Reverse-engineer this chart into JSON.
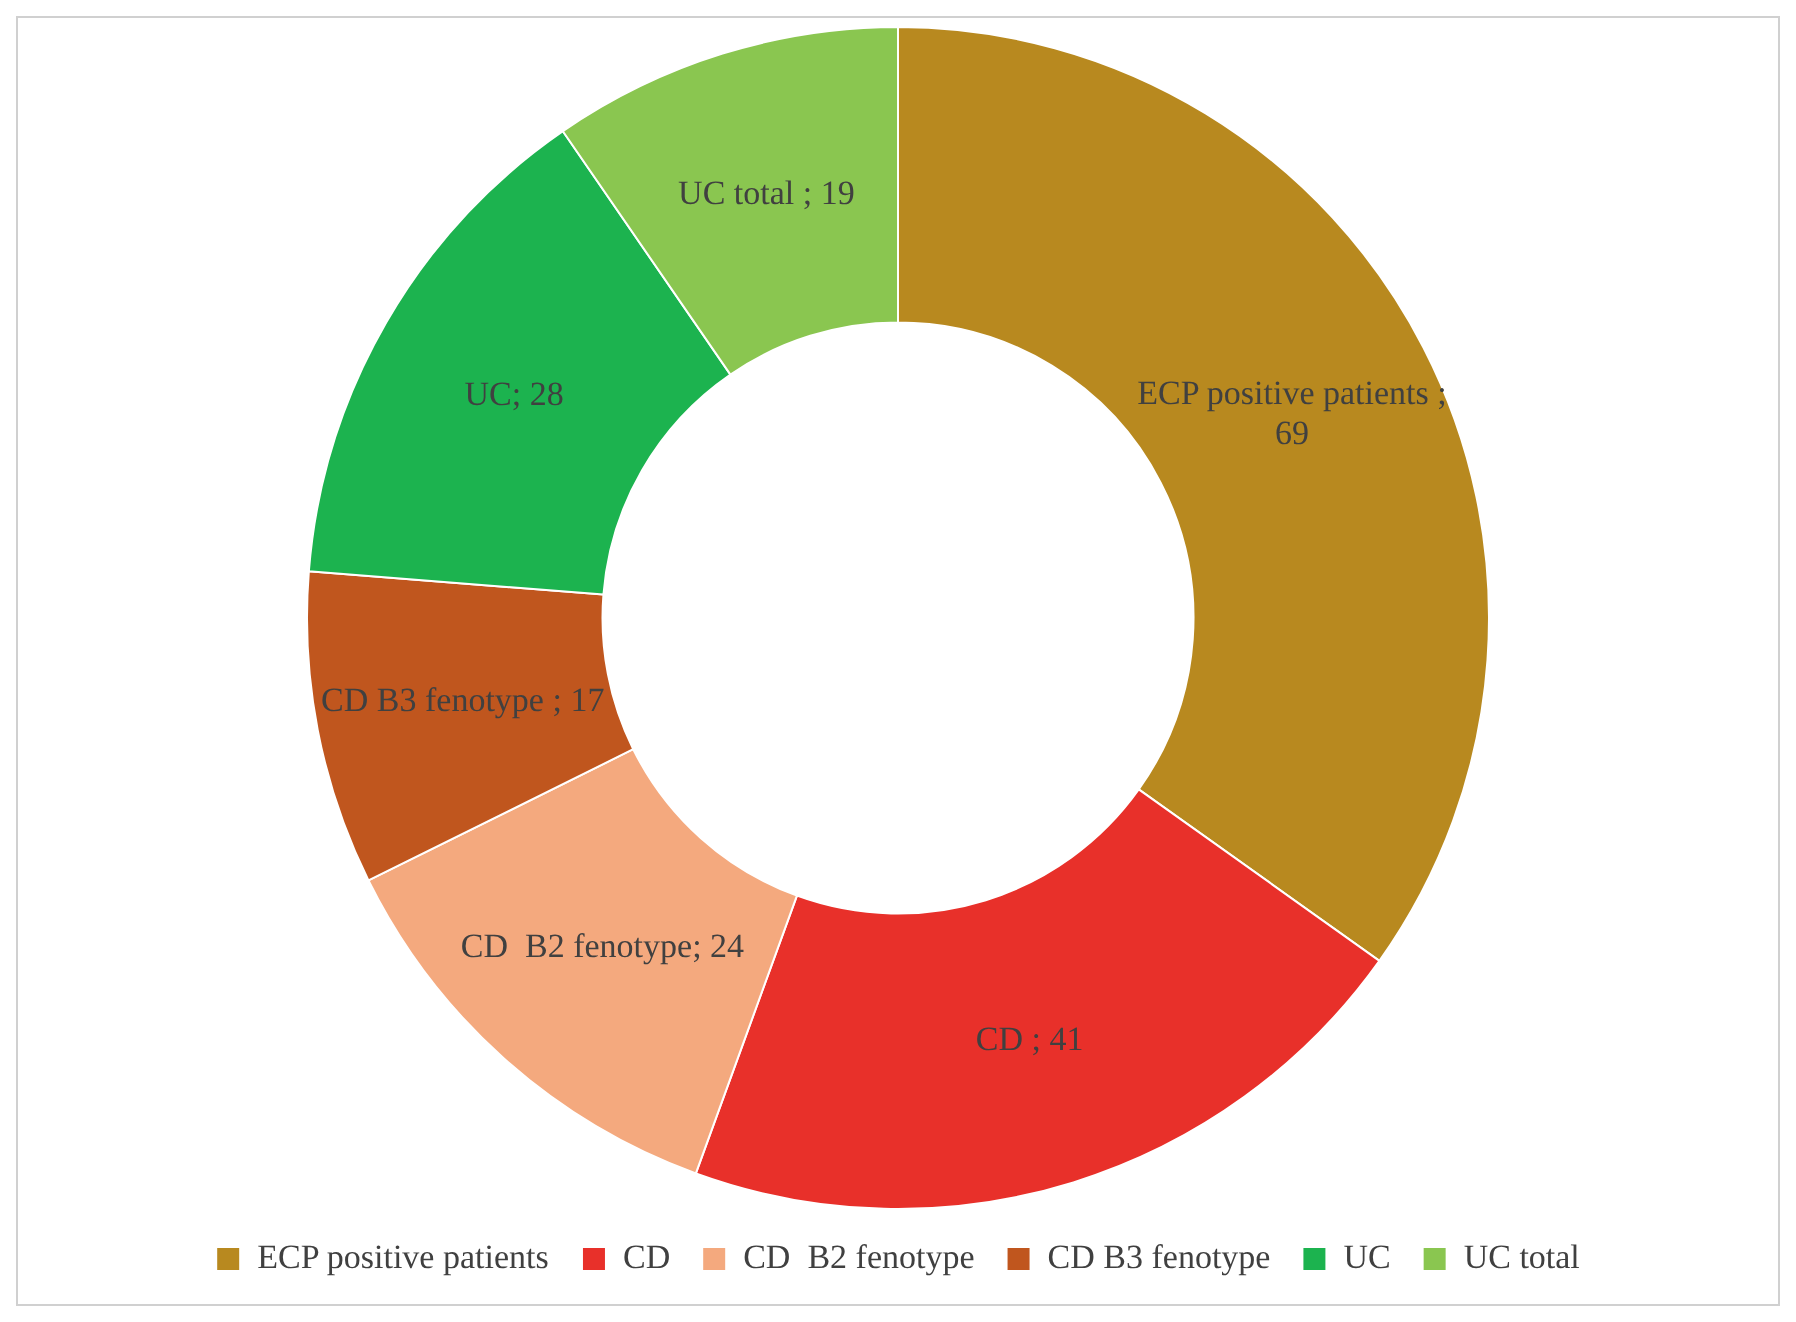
{
  "chart_data": {
    "type": "donut",
    "categories": [
      "ECP positive patients",
      "CD",
      "CD  B2 fenotype",
      "CD B3 fenotype",
      "UC",
      "UC total"
    ],
    "values": [
      69,
      41,
      24,
      17,
      28,
      19
    ],
    "colors": [
      "#b8891f",
      "#e8302a",
      "#f4a97e",
      "#c0561e",
      "#1cb34f",
      "#8ac650"
    ],
    "value_labels": [
      "ECP positive patients ; 69",
      "CD ; 41",
      "CD  B2 fenotype; 24",
      "CD B3 fenotype ; 17",
      "UC; 28",
      "UC total ; 19"
    ],
    "legend": "bottom"
  }
}
